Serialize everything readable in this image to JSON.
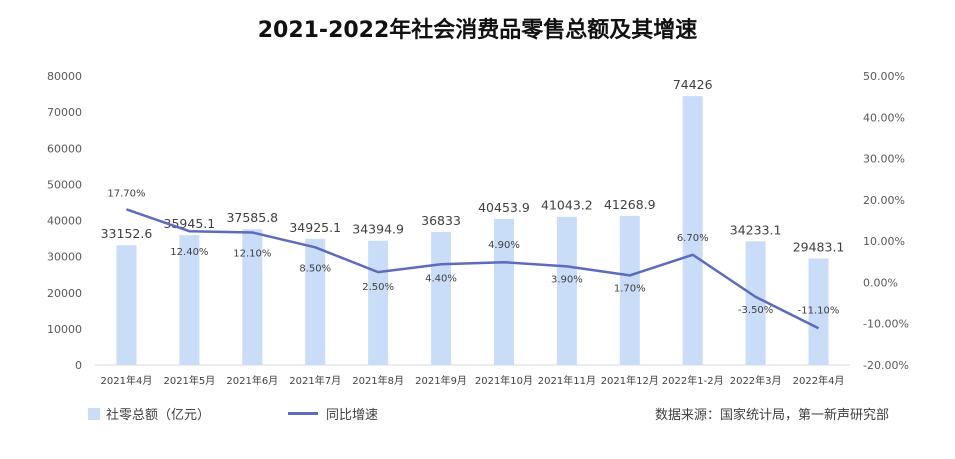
{
  "chart_data": {
    "type": "bar",
    "title": "2021-2022年社会消费品零售总额及其增速",
    "categories": [
      "2021年4月",
      "2021年5月",
      "2021年6月",
      "2021年7月",
      "2021年8月",
      "2021年9月",
      "2021年10月",
      "2021年11月",
      "2021年12月",
      "2022年1-2月",
      "2022年3月",
      "2022年4月"
    ],
    "series": [
      {
        "name": "社零总额（亿元）",
        "axis": "left",
        "type": "bar",
        "values": [
          33152.6,
          35945.1,
          37585.8,
          34925.1,
          34394.9,
          36833,
          40453.9,
          41043.2,
          41268.9,
          74426,
          34233.1,
          29483.1
        ],
        "labels": [
          "33152.6",
          "35945.1",
          "37585.8",
          "34925.1",
          "34394.9",
          "36833",
          "40453.9",
          "41043.2",
          "41268.9",
          "74426",
          "34233.1",
          "29483.1"
        ]
      },
      {
        "name": "同比增速",
        "axis": "right",
        "type": "line",
        "values": [
          17.7,
          12.4,
          12.1,
          8.5,
          2.5,
          4.4,
          4.9,
          3.9,
          1.7,
          6.7,
          -3.5,
          -11.1
        ],
        "labels": [
          "17.70%",
          "12.40%",
          "12.10%",
          "8.50%",
          "2.50%",
          "4.40%",
          "4.90%",
          "3.90%",
          "1.70%",
          "6.70%",
          "-3.50%",
          "-11.10%"
        ]
      }
    ],
    "left_axis": {
      "min": 0,
      "max": 80000,
      "ticks": [
        "0",
        "10000",
        "20000",
        "30000",
        "40000",
        "50000",
        "60000",
        "70000",
        "80000"
      ]
    },
    "right_axis": {
      "min": -20,
      "max": 50,
      "ticks": [
        "-20.00%",
        "-10.00%",
        "0.00%",
        "10.00%",
        "20.00%",
        "30.00%",
        "40.00%",
        "50.00%"
      ]
    },
    "grid": false,
    "legend": "bottom-left",
    "colors": {
      "bar": "#c9dcf8",
      "line": "#5b6bbf"
    }
  },
  "legend_items": {
    "bar": "社零总额（亿元）",
    "line": "同比增速"
  },
  "source_note": "数据来源：国家统计局，第一新声研究部"
}
